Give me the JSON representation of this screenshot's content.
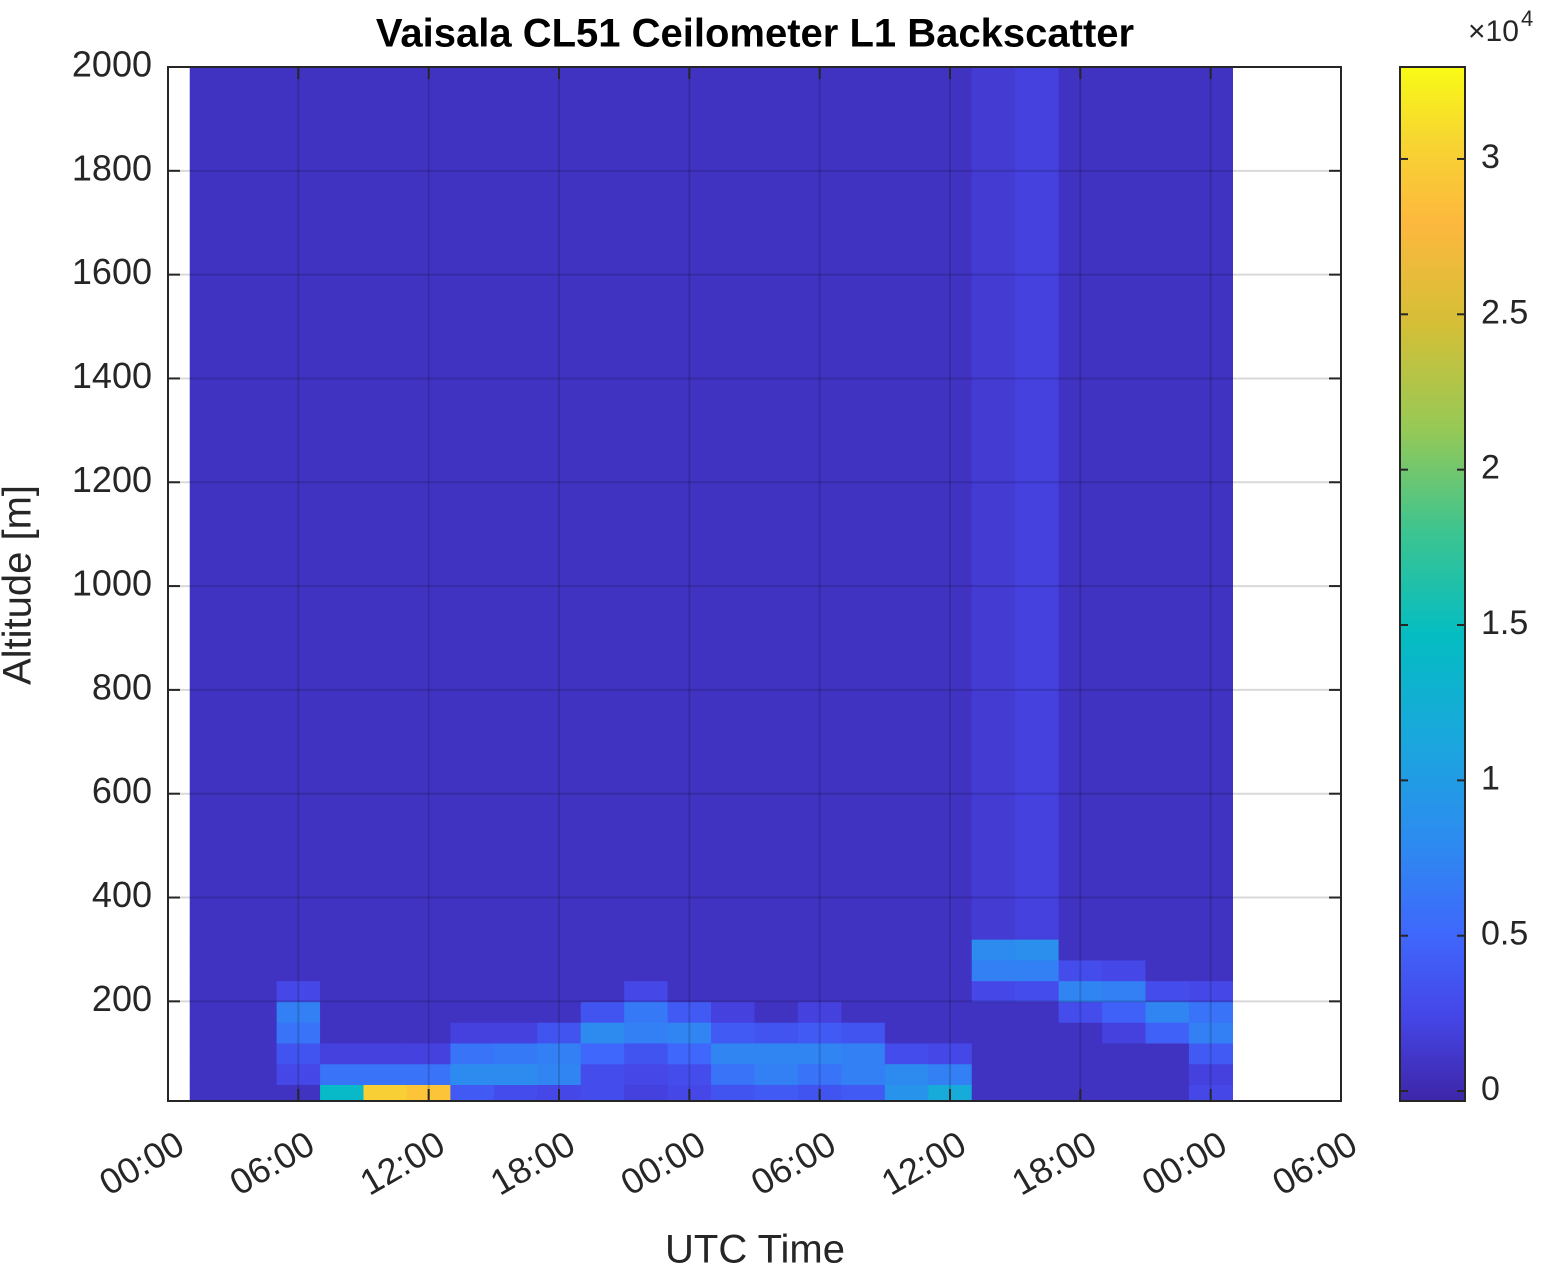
{
  "chart_data": {
    "type": "heatmap",
    "title": "Vaisala CL51 Ceilometer L1 Backscatter",
    "x_label": "UTC Time",
    "y_label": "Altitude [m]",
    "x_edges": [
      1,
      3,
      5,
      7,
      9,
      11,
      13,
      15,
      17,
      19,
      21,
      23,
      25,
      27,
      29,
      31,
      33,
      35,
      37,
      39,
      41,
      43,
      45,
      47,
      49
    ],
    "y_edges": [
      8,
      40,
      80,
      120,
      160,
      200,
      240,
      280,
      320,
      2000
    ],
    "z": [
      [
        800,
        800,
        800,
        14000,
        30000,
        29000,
        4000,
        3000,
        2500,
        3000,
        2000,
        2500,
        3500,
        4000,
        3500,
        4000,
        9000,
        12000,
        800,
        800,
        800,
        800,
        800,
        2500
      ],
      [
        800,
        800,
        2500,
        6000,
        6000,
        6000,
        8000,
        8000,
        7500,
        3000,
        2500,
        3000,
        6000,
        7000,
        6000,
        7000,
        8000,
        7000,
        800,
        800,
        800,
        800,
        800,
        2000
      ],
      [
        800,
        800,
        3500,
        2000,
        2000,
        2000,
        6000,
        6500,
        7000,
        5000,
        3500,
        5000,
        7500,
        7500,
        7500,
        7000,
        3000,
        2500,
        800,
        800,
        800,
        800,
        800,
        4000
      ],
      [
        800,
        800,
        6000,
        800,
        800,
        800,
        2000,
        2000,
        3500,
        8000,
        7000,
        7500,
        4000,
        3500,
        4000,
        3500,
        800,
        800,
        800,
        800,
        800,
        2000,
        4500,
        7000
      ],
      [
        800,
        800,
        7000,
        800,
        800,
        800,
        800,
        800,
        800,
        3500,
        6500,
        4000,
        2000,
        800,
        2000,
        800,
        800,
        800,
        800,
        800,
        3000,
        4500,
        7500,
        6000
      ],
      [
        800,
        800,
        2500,
        800,
        800,
        800,
        800,
        800,
        800,
        800,
        2500,
        800,
        800,
        800,
        800,
        800,
        800,
        800,
        2500,
        3000,
        7500,
        7000,
        3000,
        2500
      ],
      [
        800,
        800,
        800,
        800,
        800,
        800,
        800,
        800,
        800,
        800,
        800,
        800,
        800,
        800,
        800,
        800,
        800,
        800,
        7000,
        7000,
        3000,
        2500,
        800,
        800
      ],
      [
        800,
        800,
        800,
        800,
        800,
        800,
        800,
        800,
        800,
        800,
        800,
        800,
        800,
        800,
        800,
        800,
        800,
        800,
        8000,
        8500,
        800,
        800,
        800,
        800
      ],
      [
        800,
        800,
        800,
        800,
        800,
        800,
        800,
        800,
        800,
        800,
        800,
        800,
        800,
        800,
        800,
        800,
        800,
        800,
        1500,
        2000,
        800,
        800,
        800,
        800
      ]
    ],
    "xlim": [
      0,
      54
    ],
    "xticks": [
      {
        "value": 0,
        "label": "00:00"
      },
      {
        "value": 6,
        "label": "06:00"
      },
      {
        "value": 12,
        "label": "12:00"
      },
      {
        "value": 18,
        "label": "18:00"
      },
      {
        "value": 24,
        "label": "00:00"
      },
      {
        "value": 30,
        "label": "06:00"
      },
      {
        "value": 36,
        "label": "12:00"
      },
      {
        "value": 42,
        "label": "18:00"
      },
      {
        "value": 48,
        "label": "00:00"
      },
      {
        "value": 54,
        "label": "06:00"
      }
    ],
    "ylim": [
      8,
      2000
    ],
    "yticks": [
      200,
      400,
      600,
      800,
      1000,
      1200,
      1400,
      1600,
      1800,
      2000
    ],
    "grid": true,
    "colormap": "parula",
    "clim": [
      -320,
      32960
    ],
    "cticks": [
      0,
      {
        "value": 5000,
        "label": "0.5"
      },
      {
        "value": 10000,
        "label": "1"
      },
      {
        "value": 15000,
        "label": "1.5"
      },
      {
        "value": 20000,
        "label": "2"
      },
      {
        "value": 25000,
        "label": "2.5"
      },
      {
        "value": 30000,
        "label": "3"
      }
    ],
    "colorbar_scale_label": "×10",
    "colorbar_scale_exponent": 4
  }
}
